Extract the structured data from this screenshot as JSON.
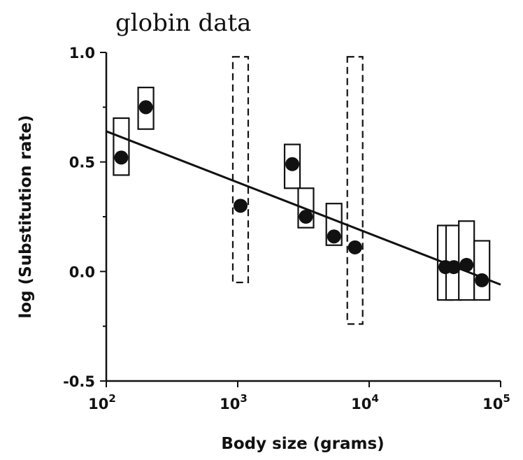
{
  "chart_data": {
    "type": "scatter",
    "title": "globin data",
    "xlabel": "Body size (grams)",
    "ylabel": "log (Substitution rate)",
    "x_scale": "log",
    "xlim": [
      100,
      100000
    ],
    "ylim": [
      -0.5,
      1.0
    ],
    "x_ticks": [
      {
        "value": 100,
        "base": "10",
        "exp": "2"
      },
      {
        "value": 1000,
        "base": "10",
        "exp": "3"
      },
      {
        "value": 10000,
        "base": "10",
        "exp": "4"
      },
      {
        "value": 100000,
        "base": "10",
        "exp": "5"
      }
    ],
    "y_ticks": [
      {
        "value": 1.0,
        "label": "1.0"
      },
      {
        "value": 0.5,
        "label": "0.5"
      },
      {
        "value": 0.0,
        "label": "0.0"
      },
      {
        "value": -0.5,
        "label": "-0.5"
      }
    ],
    "points": [
      {
        "x": 130,
        "y": 0.52,
        "box_low": 0.44,
        "box_high": 0.7,
        "dashed": false
      },
      {
        "x": 200,
        "y": 0.75,
        "box_low": 0.65,
        "box_high": 0.84,
        "dashed": false
      },
      {
        "x": 1050,
        "y": 0.3,
        "box_low": -0.05,
        "box_high": 0.98,
        "dashed": true
      },
      {
        "x": 2600,
        "y": 0.49,
        "box_low": 0.38,
        "box_high": 0.58,
        "dashed": false
      },
      {
        "x": 3300,
        "y": 0.25,
        "box_low": 0.2,
        "box_high": 0.38,
        "dashed": false
      },
      {
        "x": 5400,
        "y": 0.16,
        "box_low": 0.12,
        "box_high": 0.31,
        "dashed": false
      },
      {
        "x": 7800,
        "y": 0.11,
        "box_low": -0.24,
        "box_high": 0.98,
        "dashed": true
      },
      {
        "x": 38000,
        "y": 0.02,
        "box_low": -0.13,
        "box_high": 0.21,
        "dashed": false
      },
      {
        "x": 44000,
        "y": 0.02,
        "box_low": -0.13,
        "box_high": 0.21,
        "dashed": false
      },
      {
        "x": 55000,
        "y": 0.03,
        "box_low": -0.13,
        "box_high": 0.23,
        "dashed": false
      },
      {
        "x": 72000,
        "y": -0.04,
        "box_low": -0.13,
        "box_high": 0.14,
        "dashed": false
      }
    ],
    "fit_line": {
      "x": [
        100,
        100000
      ],
      "y": [
        0.64,
        -0.06
      ]
    },
    "grid": false,
    "legend": "none"
  }
}
